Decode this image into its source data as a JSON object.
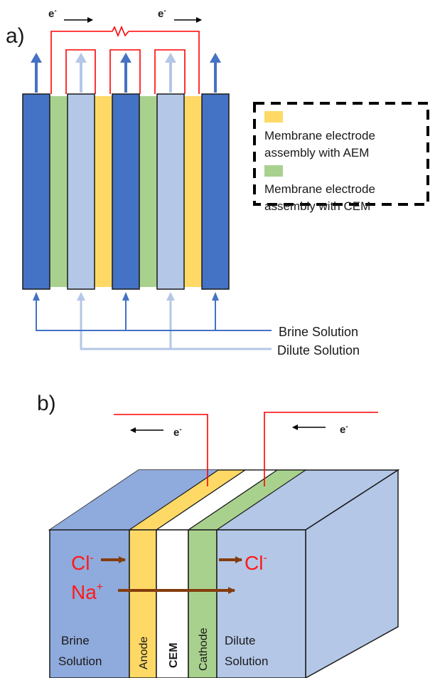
{
  "panel_a": {
    "label": "a)",
    "electron_left": "e",
    "electron_right": "e",
    "electron_charge": "-",
    "legend": {
      "aem_line1": "Membrane electrode",
      "aem_line2": "assembly with AEM",
      "cem_line1": "Membrane electrode",
      "cem_line2": "assembly with CEM"
    },
    "brine_label": "Brine Solution",
    "dilute_label": "Dilute Solution"
  },
  "panel_b": {
    "label": "b)",
    "electron_left": "e",
    "electron_right": "e",
    "electron_charge": "-",
    "cl_left": "Cl",
    "cl_left_charge": "-",
    "cl_right": "Cl",
    "cl_right_charge": "-",
    "na": "Na",
    "na_charge": "+",
    "brine_line1": "Brine",
    "brine_line2": "Solution",
    "anode": "Anode",
    "cem": "CEM",
    "cathode": "Cathode",
    "dilute_line1": "Dilute",
    "dilute_line2": "Solution"
  },
  "colors": {
    "brine_blue": "#4472c4",
    "dilute_blue": "#b4c7e7",
    "aem_yellow": "#ffd966",
    "cem_green": "#a9d18e",
    "wire_red": "#ff0000",
    "ion_arrow_brown": "#843c0c"
  }
}
